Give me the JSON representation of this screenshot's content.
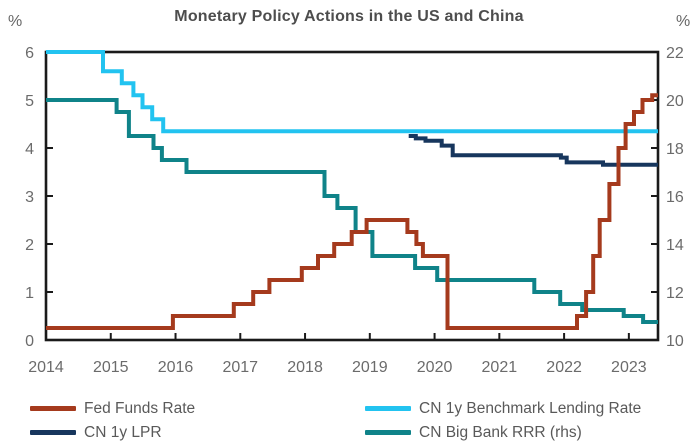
{
  "header": {
    "title": "Monetary Policy Actions in the US and China",
    "left_unit": "%",
    "right_unit": "%"
  },
  "chart_data": {
    "type": "line",
    "step": true,
    "grid": false,
    "legend_position": "bottom",
    "x_axis": {
      "min": 2014,
      "max": 2023.45,
      "ticks": [
        2014,
        2015,
        2016,
        2017,
        2018,
        2019,
        2020,
        2021,
        2022,
        2023
      ]
    },
    "y_left": {
      "min": 0,
      "max": 6,
      "ticks": [
        0,
        1,
        2,
        3,
        4,
        5,
        6
      ],
      "unit": "%"
    },
    "y_right": {
      "min": 10,
      "max": 22,
      "ticks": [
        10,
        12,
        14,
        16,
        18,
        20,
        22
      ],
      "unit": "%"
    },
    "axis_color": "#1a1a1a",
    "tick_label_color": "#6b6b6b",
    "series": [
      {
        "name": "Fed Funds Rate",
        "axis": "left",
        "color": "#A53A1D",
        "points": [
          [
            2014.0,
            0.25
          ],
          [
            2015.96,
            0.5
          ],
          [
            2016.9,
            0.75
          ],
          [
            2017.2,
            1.0
          ],
          [
            2017.45,
            1.25
          ],
          [
            2017.95,
            1.5
          ],
          [
            2018.2,
            1.75
          ],
          [
            2018.45,
            2.0
          ],
          [
            2018.72,
            2.25
          ],
          [
            2018.95,
            2.5
          ],
          [
            2019.58,
            2.25
          ],
          [
            2019.72,
            2.0
          ],
          [
            2019.82,
            1.75
          ],
          [
            2020.2,
            0.25
          ],
          [
            2022.2,
            0.5
          ],
          [
            2022.34,
            1.0
          ],
          [
            2022.45,
            1.75
          ],
          [
            2022.55,
            2.5
          ],
          [
            2022.7,
            3.25
          ],
          [
            2022.84,
            4.0
          ],
          [
            2022.95,
            4.5
          ],
          [
            2023.08,
            4.75
          ],
          [
            2023.21,
            5.0
          ],
          [
            2023.36,
            5.1
          ]
        ]
      },
      {
        "name": "CN 1y Benchmark Lending Rate",
        "axis": "left",
        "color": "#22C3F0",
        "points": [
          [
            2014.0,
            6.0
          ],
          [
            2014.88,
            5.6
          ],
          [
            2015.17,
            5.35
          ],
          [
            2015.35,
            5.1
          ],
          [
            2015.49,
            4.85
          ],
          [
            2015.64,
            4.6
          ],
          [
            2015.81,
            4.35
          ]
        ]
      },
      {
        "name": "CN 1y LPR",
        "axis": "left",
        "color": "#17365D",
        "points": [
          [
            2019.6,
            4.25
          ],
          [
            2019.71,
            4.2
          ],
          [
            2019.86,
            4.15
          ],
          [
            2020.11,
            4.05
          ],
          [
            2020.28,
            3.85
          ],
          [
            2021.95,
            3.8
          ],
          [
            2022.04,
            3.7
          ],
          [
            2022.6,
            3.65
          ]
        ]
      },
      {
        "name": "CN Big Bank RRR (rhs)",
        "axis": "right",
        "color": "#0F8389",
        "points": [
          [
            2014.0,
            20
          ],
          [
            2015.09,
            19.5
          ],
          [
            2015.28,
            18.5
          ],
          [
            2015.66,
            18
          ],
          [
            2015.79,
            17.5
          ],
          [
            2016.17,
            17
          ],
          [
            2018.3,
            16
          ],
          [
            2018.5,
            15.5
          ],
          [
            2018.78,
            14.5
          ],
          [
            2019.04,
            13.5
          ],
          [
            2019.7,
            13
          ],
          [
            2020.04,
            12.5
          ],
          [
            2021.54,
            12
          ],
          [
            2021.94,
            11.5
          ],
          [
            2022.28,
            11.25
          ],
          [
            2022.92,
            11.0
          ],
          [
            2023.22,
            10.75
          ]
        ]
      }
    ]
  }
}
